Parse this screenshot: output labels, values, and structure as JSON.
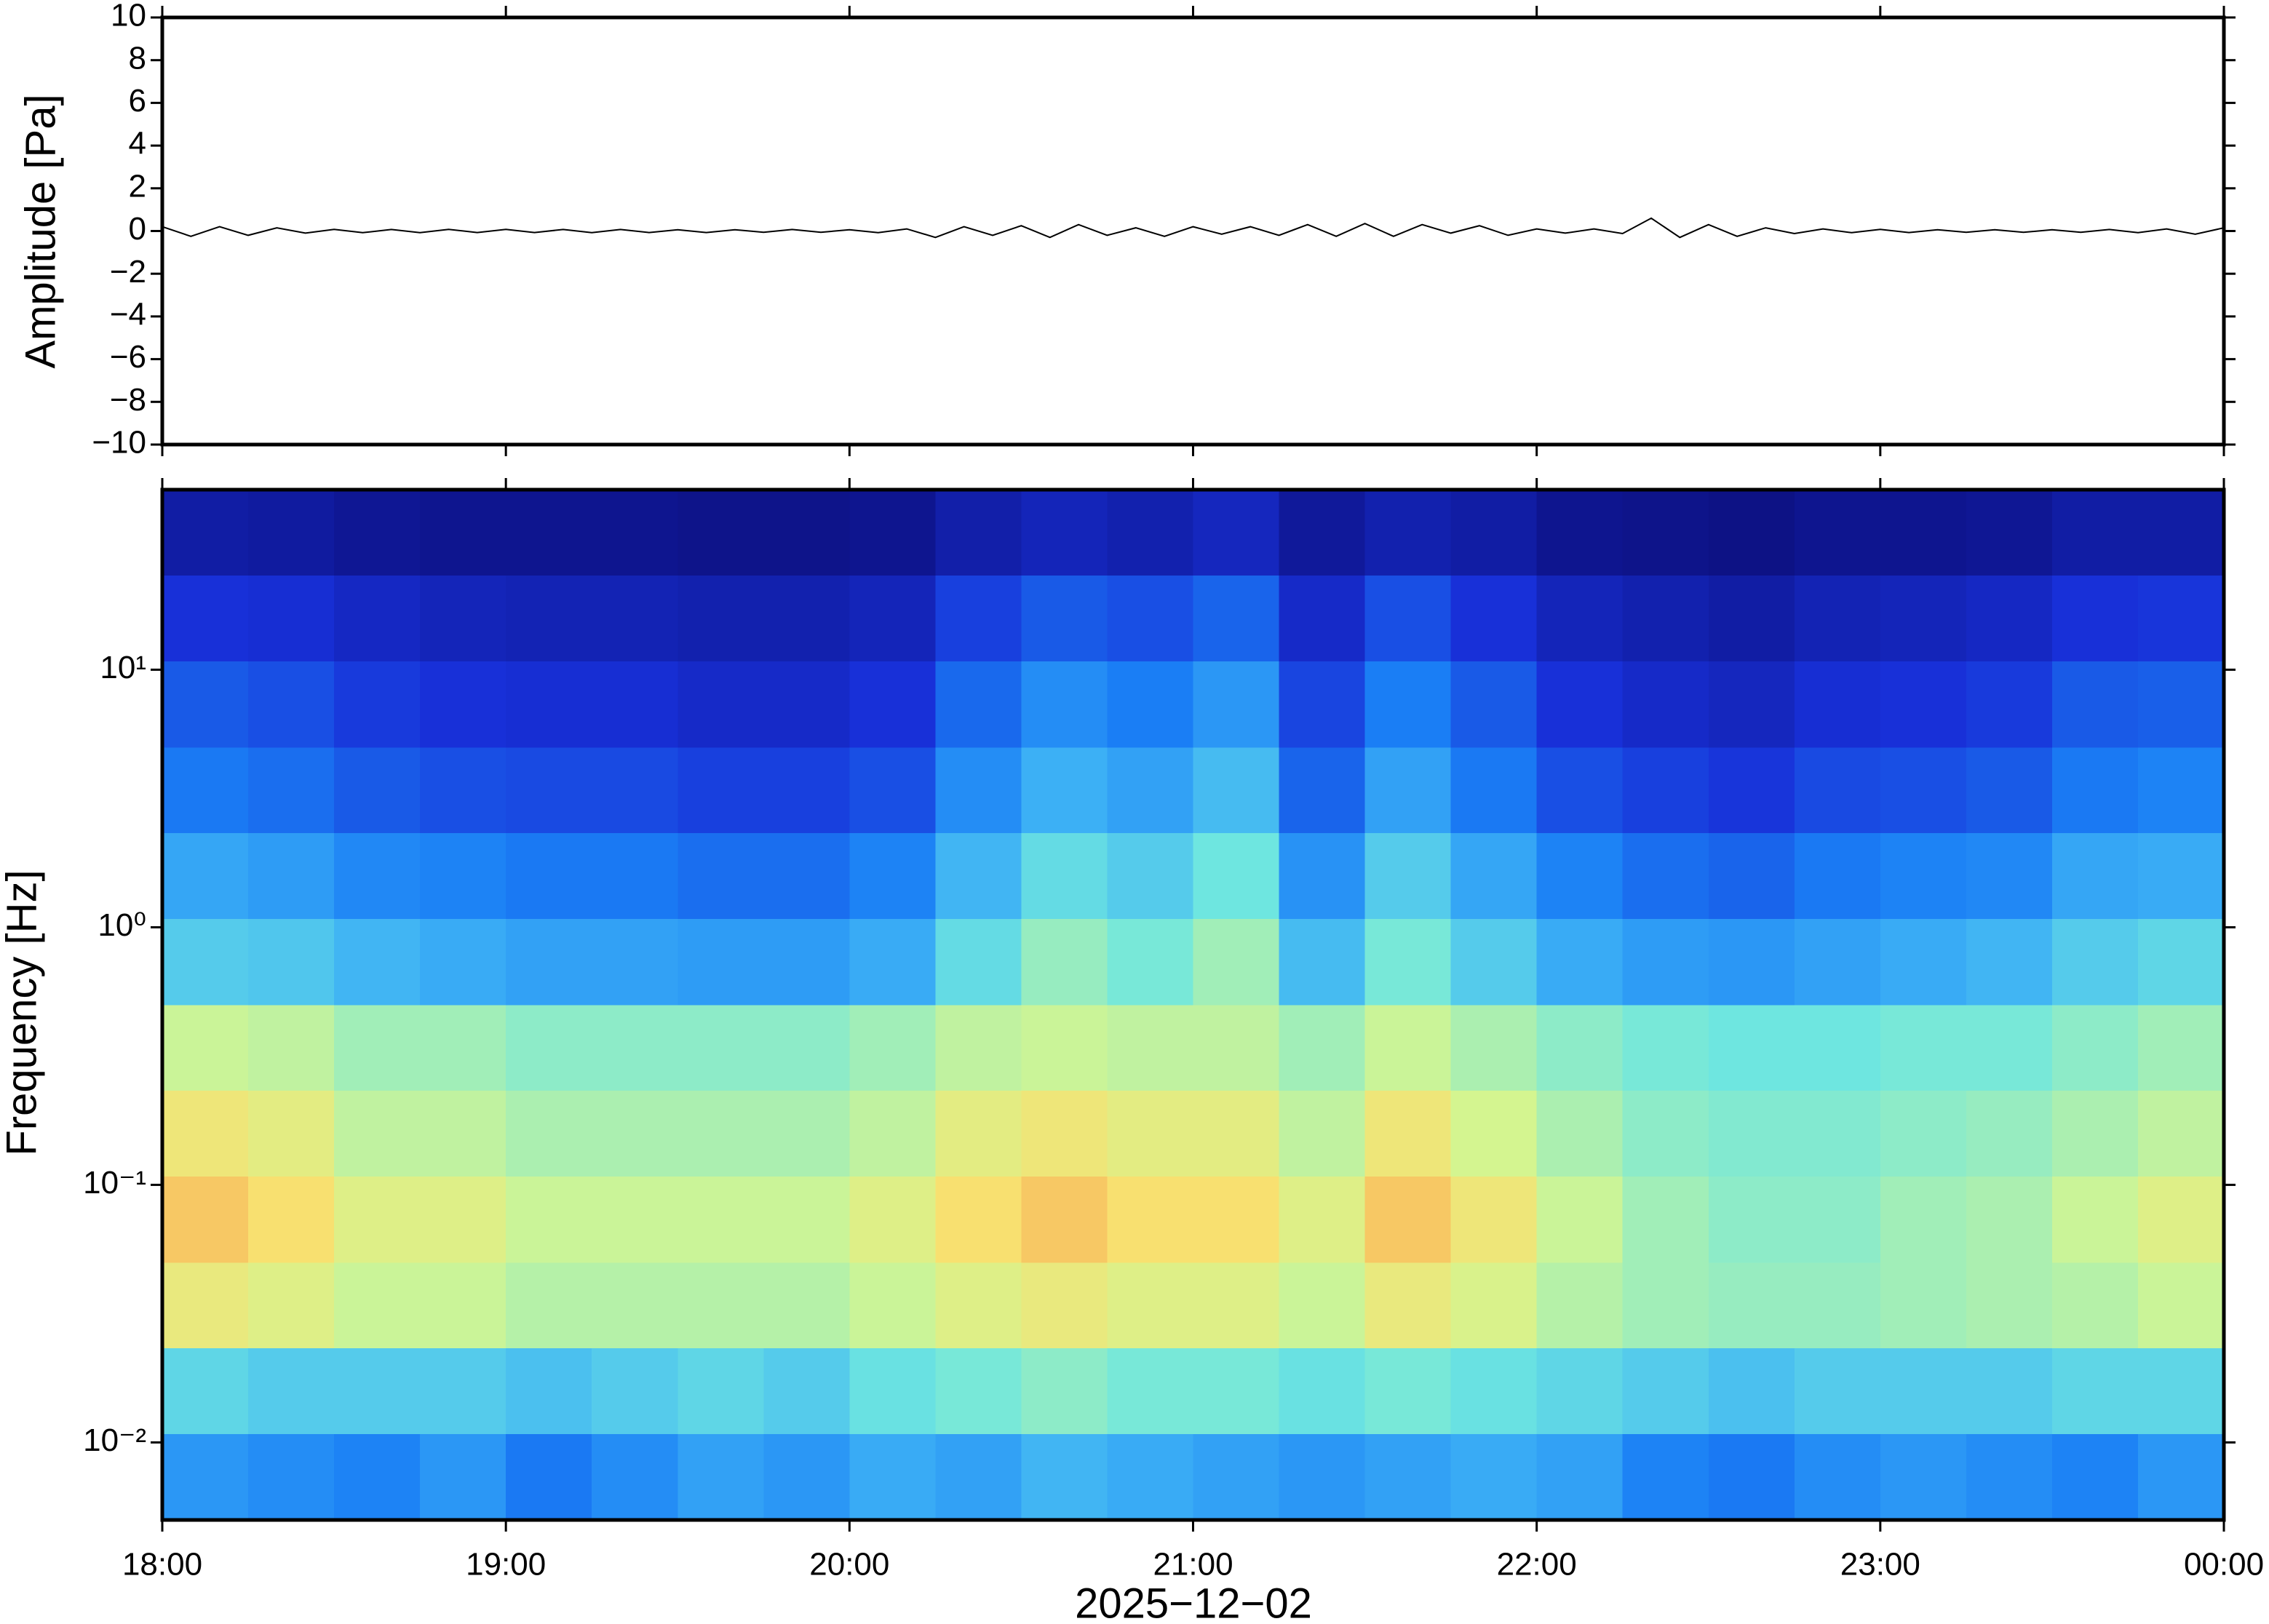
{
  "chart_data": [
    {
      "type": "line",
      "ylabel": "Amplitude [Pa]",
      "color": "#000000",
      "xlim": [
        0,
        360
      ],
      "xticks": [
        0,
        60,
        120,
        180,
        240,
        300,
        360
      ],
      "ylim": [
        -10,
        10
      ],
      "yticks": [
        {
          "value": -10,
          "label": "−10"
        },
        {
          "value": -8,
          "label": "−8"
        },
        {
          "value": -6,
          "label": "−6"
        },
        {
          "value": -4,
          "label": "−4"
        },
        {
          "value": -2,
          "label": "−2"
        },
        0,
        2,
        4,
        6,
        8,
        10
      ],
      "x": [
        0,
        5,
        10,
        15,
        20,
        25,
        30,
        35,
        40,
        45,
        50,
        55,
        60,
        65,
        70,
        75,
        80,
        85,
        90,
        95,
        100,
        105,
        110,
        115,
        120,
        125,
        130,
        135,
        140,
        145,
        150,
        155,
        160,
        165,
        170,
        175,
        180,
        185,
        190,
        195,
        200,
        205,
        210,
        215,
        220,
        225,
        230,
        235,
        240,
        245,
        250,
        255,
        260,
        265,
        270,
        275,
        280,
        285,
        290,
        295,
        300,
        305,
        310,
        315,
        320,
        325,
        330,
        335,
        340,
        345,
        350,
        355,
        360
      ],
      "values": [
        0.2,
        -0.25,
        0.2,
        -0.2,
        0.15,
        -0.1,
        0.08,
        -0.08,
        0.07,
        -0.08,
        0.08,
        -0.07,
        0.08,
        -0.07,
        0.07,
        -0.08,
        0.07,
        -0.07,
        0.06,
        -0.07,
        0.06,
        -0.06,
        0.07,
        -0.06,
        0.06,
        -0.08,
        0.1,
        -0.3,
        0.2,
        -0.2,
        0.25,
        -0.3,
        0.3,
        -0.2,
        0.15,
        -0.25,
        0.2,
        -0.15,
        0.2,
        -0.2,
        0.3,
        -0.25,
        0.35,
        -0.25,
        0.3,
        -0.1,
        0.25,
        -0.2,
        0.1,
        -0.1,
        0.1,
        -0.12,
        0.6,
        -0.3,
        0.3,
        -0.25,
        0.15,
        -0.12,
        0.1,
        -0.08,
        0.08,
        -0.07,
        0.06,
        -0.06,
        0.06,
        -0.06,
        0.06,
        -0.06,
        0.07,
        -0.08,
        0.1,
        -0.15,
        0.15
      ]
    },
    {
      "type": "heatmap",
      "ylabel": "Frequency [Hz]",
      "xlabel": "2025−12−02",
      "log_y": true,
      "xlim": [
        0,
        360
      ],
      "xticks": [
        {
          "value": 0,
          "label": "18:00"
        },
        {
          "value": 60,
          "label": "19:00"
        },
        {
          "value": 120,
          "label": "20:00"
        },
        {
          "value": 180,
          "label": "21:00"
        },
        {
          "value": 240,
          "label": "22:00"
        },
        {
          "value": 300,
          "label": "23:00"
        },
        {
          "value": 360,
          "label": "00:00"
        }
      ],
      "ylim": [
        0.005,
        50
      ],
      "yticks": [
        {
          "value": 0.01,
          "label": "10⁻²"
        },
        {
          "value": 0.1,
          "label": "10⁻¹"
        },
        {
          "value": 1,
          "label": "10⁰"
        },
        {
          "value": 10,
          "label": "10¹"
        }
      ],
      "colorscale": [
        [
          0,
          "#0a0a70"
        ],
        [
          20,
          "#1830d8"
        ],
        [
          35,
          "#1a7ef5"
        ],
        [
          45,
          "#3cb0f5"
        ],
        [
          55,
          "#6ee6e0"
        ],
        [
          65,
          "#d4f590"
        ],
        [
          72,
          "#f8e070"
        ],
        [
          80,
          "#f5a050"
        ]
      ],
      "x_edges": [
        0,
        15,
        30,
        45,
        60,
        75,
        90,
        105,
        120,
        135,
        150,
        165,
        180,
        195,
        210,
        225,
        240,
        255,
        270,
        285,
        300,
        315,
        330,
        345,
        360
      ],
      "y_edges": [
        0.005,
        0.0108,
        0.0233,
        0.05,
        0.108,
        0.233,
        0.5,
        1.08,
        2.33,
        5,
        10.8,
        23.3,
        50
      ],
      "z": [
        [
          40,
          38,
          36,
          40,
          34,
          38,
          42,
          40,
          44,
          42,
          46,
          44,
          42,
          40,
          42,
          44,
          42,
          36,
          34,
          38,
          40,
          38,
          36,
          40
        ],
        [
          52,
          50,
          50,
          50,
          48,
          50,
          52,
          50,
          54,
          56,
          58,
          56,
          56,
          54,
          56,
          54,
          52,
          50,
          48,
          50,
          50,
          50,
          52,
          52
        ],
        [
          69,
          67,
          64,
          64,
          62,
          62,
          62,
          62,
          64,
          67,
          69,
          67,
          67,
          64,
          69,
          66,
          62,
          60,
          59,
          59,
          60,
          61,
          62,
          64
        ],
        [
          75,
          72,
          67,
          67,
          64,
          64,
          64,
          64,
          67,
          72,
          75,
          72,
          72,
          67,
          75,
          70,
          64,
          60,
          58,
          58,
          60,
          61,
          64,
          67
        ],
        [
          70,
          68,
          63,
          63,
          61,
          61,
          61,
          61,
          63,
          68,
          70,
          68,
          68,
          63,
          70,
          65,
          61,
          58,
          57,
          57,
          58,
          59,
          61,
          63
        ],
        [
          64,
          63,
          60,
          60,
          58,
          58,
          58,
          58,
          60,
          63,
          64,
          63,
          63,
          60,
          64,
          61,
          58,
          56,
          55,
          55,
          56,
          56,
          58,
          60
        ],
        [
          50,
          49,
          46,
          44,
          42,
          42,
          41,
          41,
          44,
          53,
          59,
          56,
          60,
          47,
          56,
          50,
          44,
          41,
          40,
          42,
          44,
          46,
          50,
          52
        ],
        [
          43,
          41,
          37,
          36,
          34,
          34,
          32,
          32,
          36,
          46,
          53,
          50,
          55,
          39,
          50,
          43,
          36,
          32,
          30,
          34,
          36,
          37,
          43,
          44
        ],
        [
          34,
          32,
          28,
          26,
          25,
          25,
          23,
          23,
          26,
          38,
          45,
          42,
          47,
          30,
          42,
          34,
          26,
          23,
          21,
          25,
          26,
          28,
          34,
          36
        ],
        [
          28,
          26,
          22,
          20,
          19,
          19,
          17,
          17,
          20,
          31,
          38,
          35,
          40,
          24,
          35,
          28,
          20,
          17,
          15,
          19,
          20,
          22,
          28,
          29
        ],
        [
          20,
          19,
          16,
          14,
          13,
          13,
          12,
          12,
          14,
          23,
          28,
          26,
          30,
          17,
          26,
          20,
          14,
          12,
          10,
          13,
          14,
          16,
          20,
          21
        ],
        [
          10,
          9,
          7,
          6,
          6,
          6,
          5,
          5,
          6,
          11,
          14,
          12,
          15,
          8,
          12,
          10,
          6,
          5,
          4,
          6,
          6,
          7,
          10,
          10
        ]
      ]
    }
  ]
}
